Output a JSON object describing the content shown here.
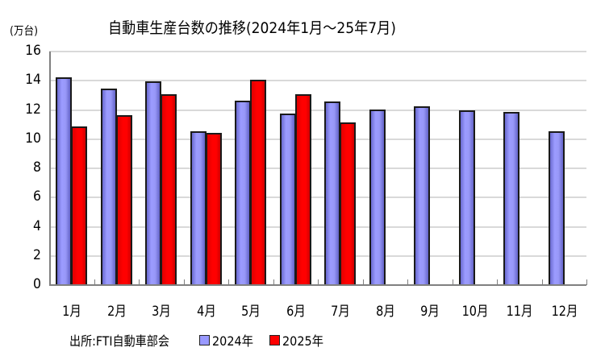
{
  "chart_data": {
    "type": "bar",
    "title": "自動車生産台数の推移(2024年1月～25年7月)",
    "xlabel": "",
    "ylabel": "(万台)",
    "ylim": [
      0,
      16
    ],
    "yticks": [
      "0",
      "2",
      "4",
      "6",
      "8",
      "10",
      "12",
      "14",
      "16"
    ],
    "grid": true,
    "legend_position": "bottom",
    "categories": [
      "1月",
      "2月",
      "3月",
      "4月",
      "5月",
      "6月",
      "7月",
      "8月",
      "9月",
      "10月",
      "11月",
      "12月"
    ],
    "series": [
      {
        "name": "2024年",
        "color": "#9999ff",
        "values": [
          14.2,
          13.4,
          13.9,
          10.5,
          12.6,
          11.7,
          12.5,
          12.0,
          12.2,
          11.9,
          11.8,
          10.5
        ]
      },
      {
        "name": "2025年",
        "color": "#ff0000",
        "values": [
          10.8,
          11.6,
          13.0,
          10.4,
          14.0,
          13.0,
          11.1,
          null,
          null,
          null,
          null,
          null
        ]
      }
    ],
    "source": "出所:FTI自動車部会"
  },
  "title": "自動車生産台数の推移(2024年1月～25年7月)",
  "y_unit": "(万台)",
  "legend": {
    "source": "出所:FTI自動車部会",
    "items": [
      {
        "label": "2024年",
        "color": "#9999ff"
      },
      {
        "label": "2025年",
        "color": "#ff0000"
      }
    ]
  }
}
